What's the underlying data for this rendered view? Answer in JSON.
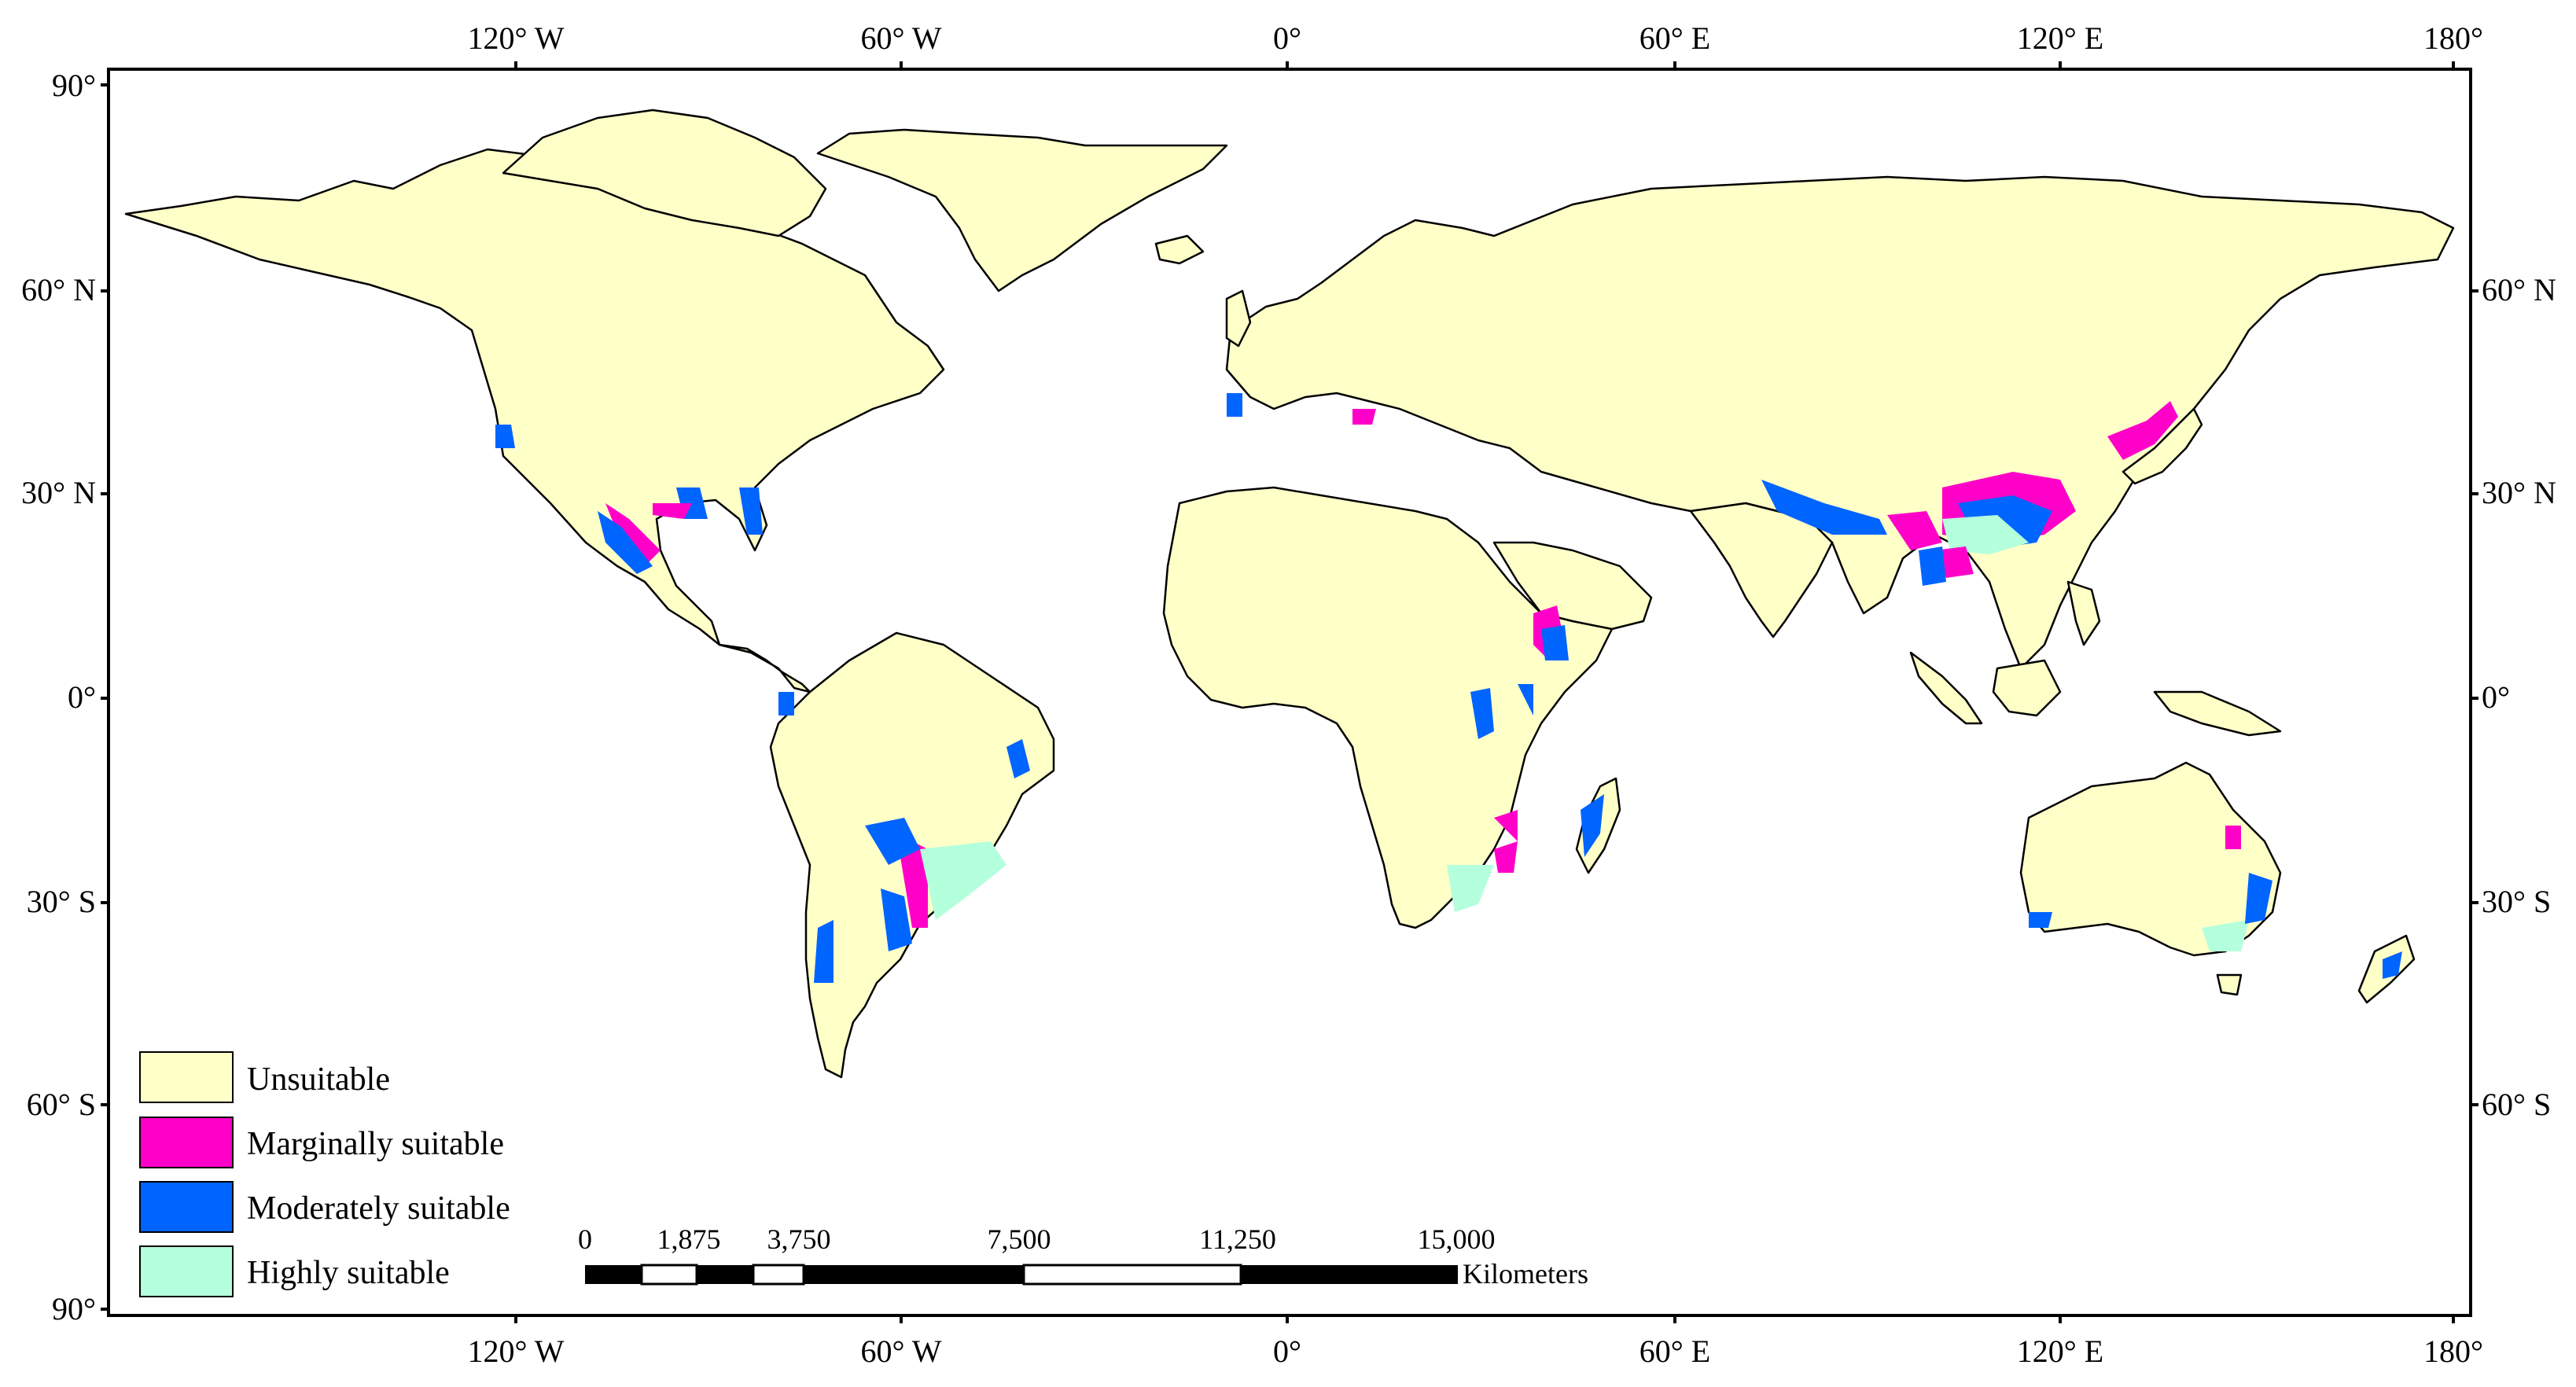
{
  "map": {
    "colors": {
      "unsuitable": "#ffffc8",
      "marginally": "#ff00c8",
      "moderately": "#0064ff",
      "highly": "#b4ffdc",
      "ocean": "#ffffff",
      "border": "#000000"
    },
    "top_axis": [
      "120° W",
      "60° W",
      "0°",
      "60° E",
      "120° E",
      "180°"
    ],
    "bottom_axis": [
      "120° W",
      "60° W",
      "0°",
      "60° E",
      "120° E",
      "180°"
    ],
    "left_axis": [
      "90°",
      "60° N",
      "30° N",
      "0°",
      "30° S",
      "60° S",
      "90°"
    ],
    "right_axis": [
      "60° N",
      "30° N",
      "0°",
      "30° S",
      "60° S"
    ],
    "legend": [
      {
        "label": "Unsuitable",
        "color": "#ffffc8"
      },
      {
        "label": "Marginally suitable",
        "color": "#ff00c8"
      },
      {
        "label": "Moderately suitable",
        "color": "#0064ff"
      },
      {
        "label": "Highly suitable",
        "color": "#b4ffdc"
      }
    ],
    "scale_bar": {
      "ticks": [
        "0",
        "1,875",
        "3,750",
        "7,500",
        "11,250",
        "15,000"
      ],
      "unit": "Kilometers"
    }
  }
}
